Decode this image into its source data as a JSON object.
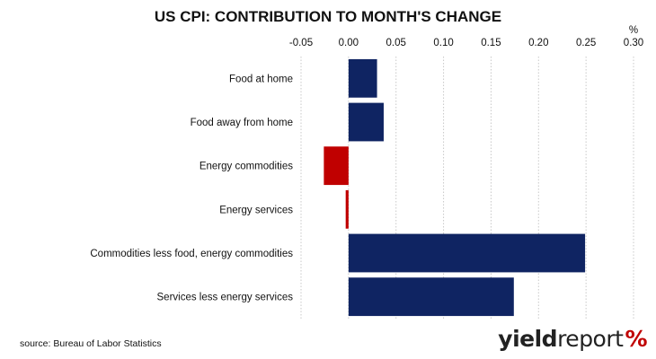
{
  "chart_data": {
    "type": "bar",
    "orientation": "horizontal",
    "title": "US CPI: CONTRIBUTION TO MONTH'S CHANGE",
    "unit_label": "%",
    "categories": [
      "Food at home",
      "Food away from home",
      "Energy commodities",
      "Energy services",
      "Commodities less food, energy commodities",
      "Services less energy services"
    ],
    "values": [
      0.03,
      0.037,
      -0.026,
      -0.003,
      0.249,
      0.174
    ],
    "xlim": [
      -0.05,
      0.3
    ],
    "x_ticks": [
      -0.05,
      0.0,
      0.05,
      0.1,
      0.15,
      0.2,
      0.25,
      0.3
    ],
    "x_tick_labels": [
      "-0.05",
      "0.00",
      "0.05",
      "0.10",
      "0.15",
      "0.20",
      "0.25",
      "0.30"
    ],
    "axis_position": "top",
    "grid": "vertical-dotted",
    "legend": "none",
    "colors": {
      "positive": "#0f2462",
      "negative": "#c00000"
    }
  },
  "footer": {
    "source": "source: Bureau of Labor Statistics"
  },
  "logo": {
    "part1": "yield",
    "part2": "report",
    "part3": "%"
  }
}
